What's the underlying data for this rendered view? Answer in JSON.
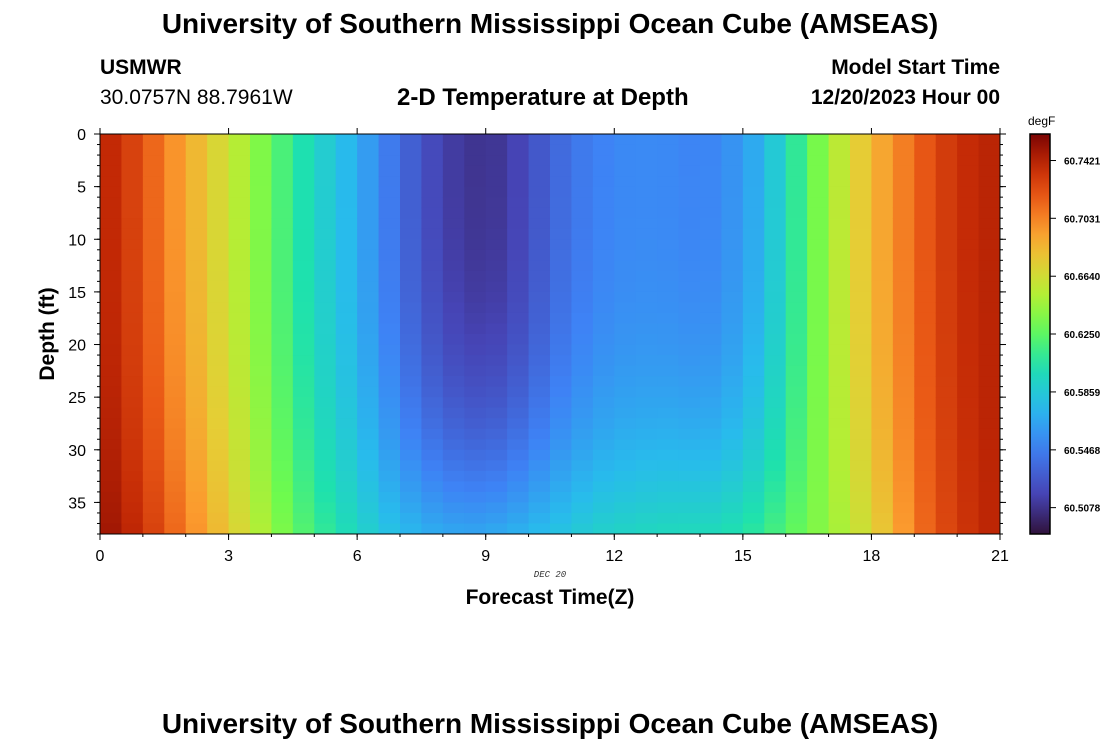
{
  "header": {
    "title": "University of Southern Mississippi Ocean Cube (AMSEAS)",
    "station": "USMWR",
    "coordinates": "30.0757N  88.7961W",
    "subtitle": "2-D Temperature at Depth",
    "start_label": "Model Start Time",
    "start_value": "12/20/2023 Hour 00"
  },
  "footer": {
    "title": "University of Southern Mississippi Ocean Cube (AMSEAS)"
  },
  "chart_data": {
    "type": "heatmap",
    "title": "2-D Temperature at Depth",
    "xlabel": "Forecast Time(Z)",
    "ylabel": "Depth (ft)",
    "date_label": "DEC 20",
    "xlim": [
      0,
      21
    ],
    "ylim": [
      0,
      38
    ],
    "y_inverted": true,
    "x_ticks": [
      0,
      3,
      6,
      9,
      12,
      15,
      18,
      21
    ],
    "y_ticks": [
      0,
      5,
      10,
      15,
      20,
      25,
      30,
      35
    ],
    "colorbar": {
      "unit": "degF",
      "ticks": [
        "60.5078",
        "60.5468",
        "60.5859",
        "60.6250",
        "60.6640",
        "60.7031",
        "60.7421"
      ],
      "range": [
        60.49,
        60.76
      ]
    },
    "profile_x": [
      0,
      0.5,
      1,
      1.5,
      2,
      2.5,
      3,
      3.5,
      4,
      4.5,
      5,
      5.5,
      6,
      6.5,
      7,
      7.5,
      8,
      8.5,
      9,
      9.5,
      10,
      10.5,
      11,
      11.5,
      12,
      12.5,
      13,
      13.5,
      14,
      14.5,
      15,
      15.5,
      16,
      16.5,
      17,
      17.5,
      18,
      18.5,
      19,
      19.5,
      20,
      20.5,
      21
    ],
    "surface_temps": [
      60.742,
      60.735,
      60.72,
      60.705,
      60.69,
      60.675,
      60.66,
      60.645,
      60.627,
      60.61,
      60.595,
      60.582,
      60.57,
      60.553,
      60.538,
      60.525,
      60.515,
      60.51,
      60.508,
      60.512,
      60.522,
      60.533,
      60.542,
      60.548,
      60.552,
      60.553,
      60.553,
      60.552,
      60.55,
      60.553,
      60.562,
      60.575,
      60.598,
      60.622,
      60.645,
      60.665,
      60.683,
      60.698,
      60.712,
      60.725,
      60.735,
      60.74,
      60.742
    ],
    "bottom_temps": [
      60.752,
      60.745,
      60.735,
      60.72,
      60.705,
      60.69,
      60.675,
      60.66,
      60.642,
      60.628,
      60.615,
      60.605,
      60.595,
      60.585,
      60.578,
      60.572,
      60.568,
      60.566,
      60.567,
      60.57,
      60.575,
      60.58,
      60.585,
      60.59,
      60.593,
      60.595,
      60.597,
      60.598,
      60.598,
      60.6,
      60.605,
      60.612,
      60.622,
      60.632,
      60.642,
      60.655,
      60.668,
      60.685,
      60.705,
      60.72,
      60.73,
      60.738,
      60.742
    ]
  }
}
